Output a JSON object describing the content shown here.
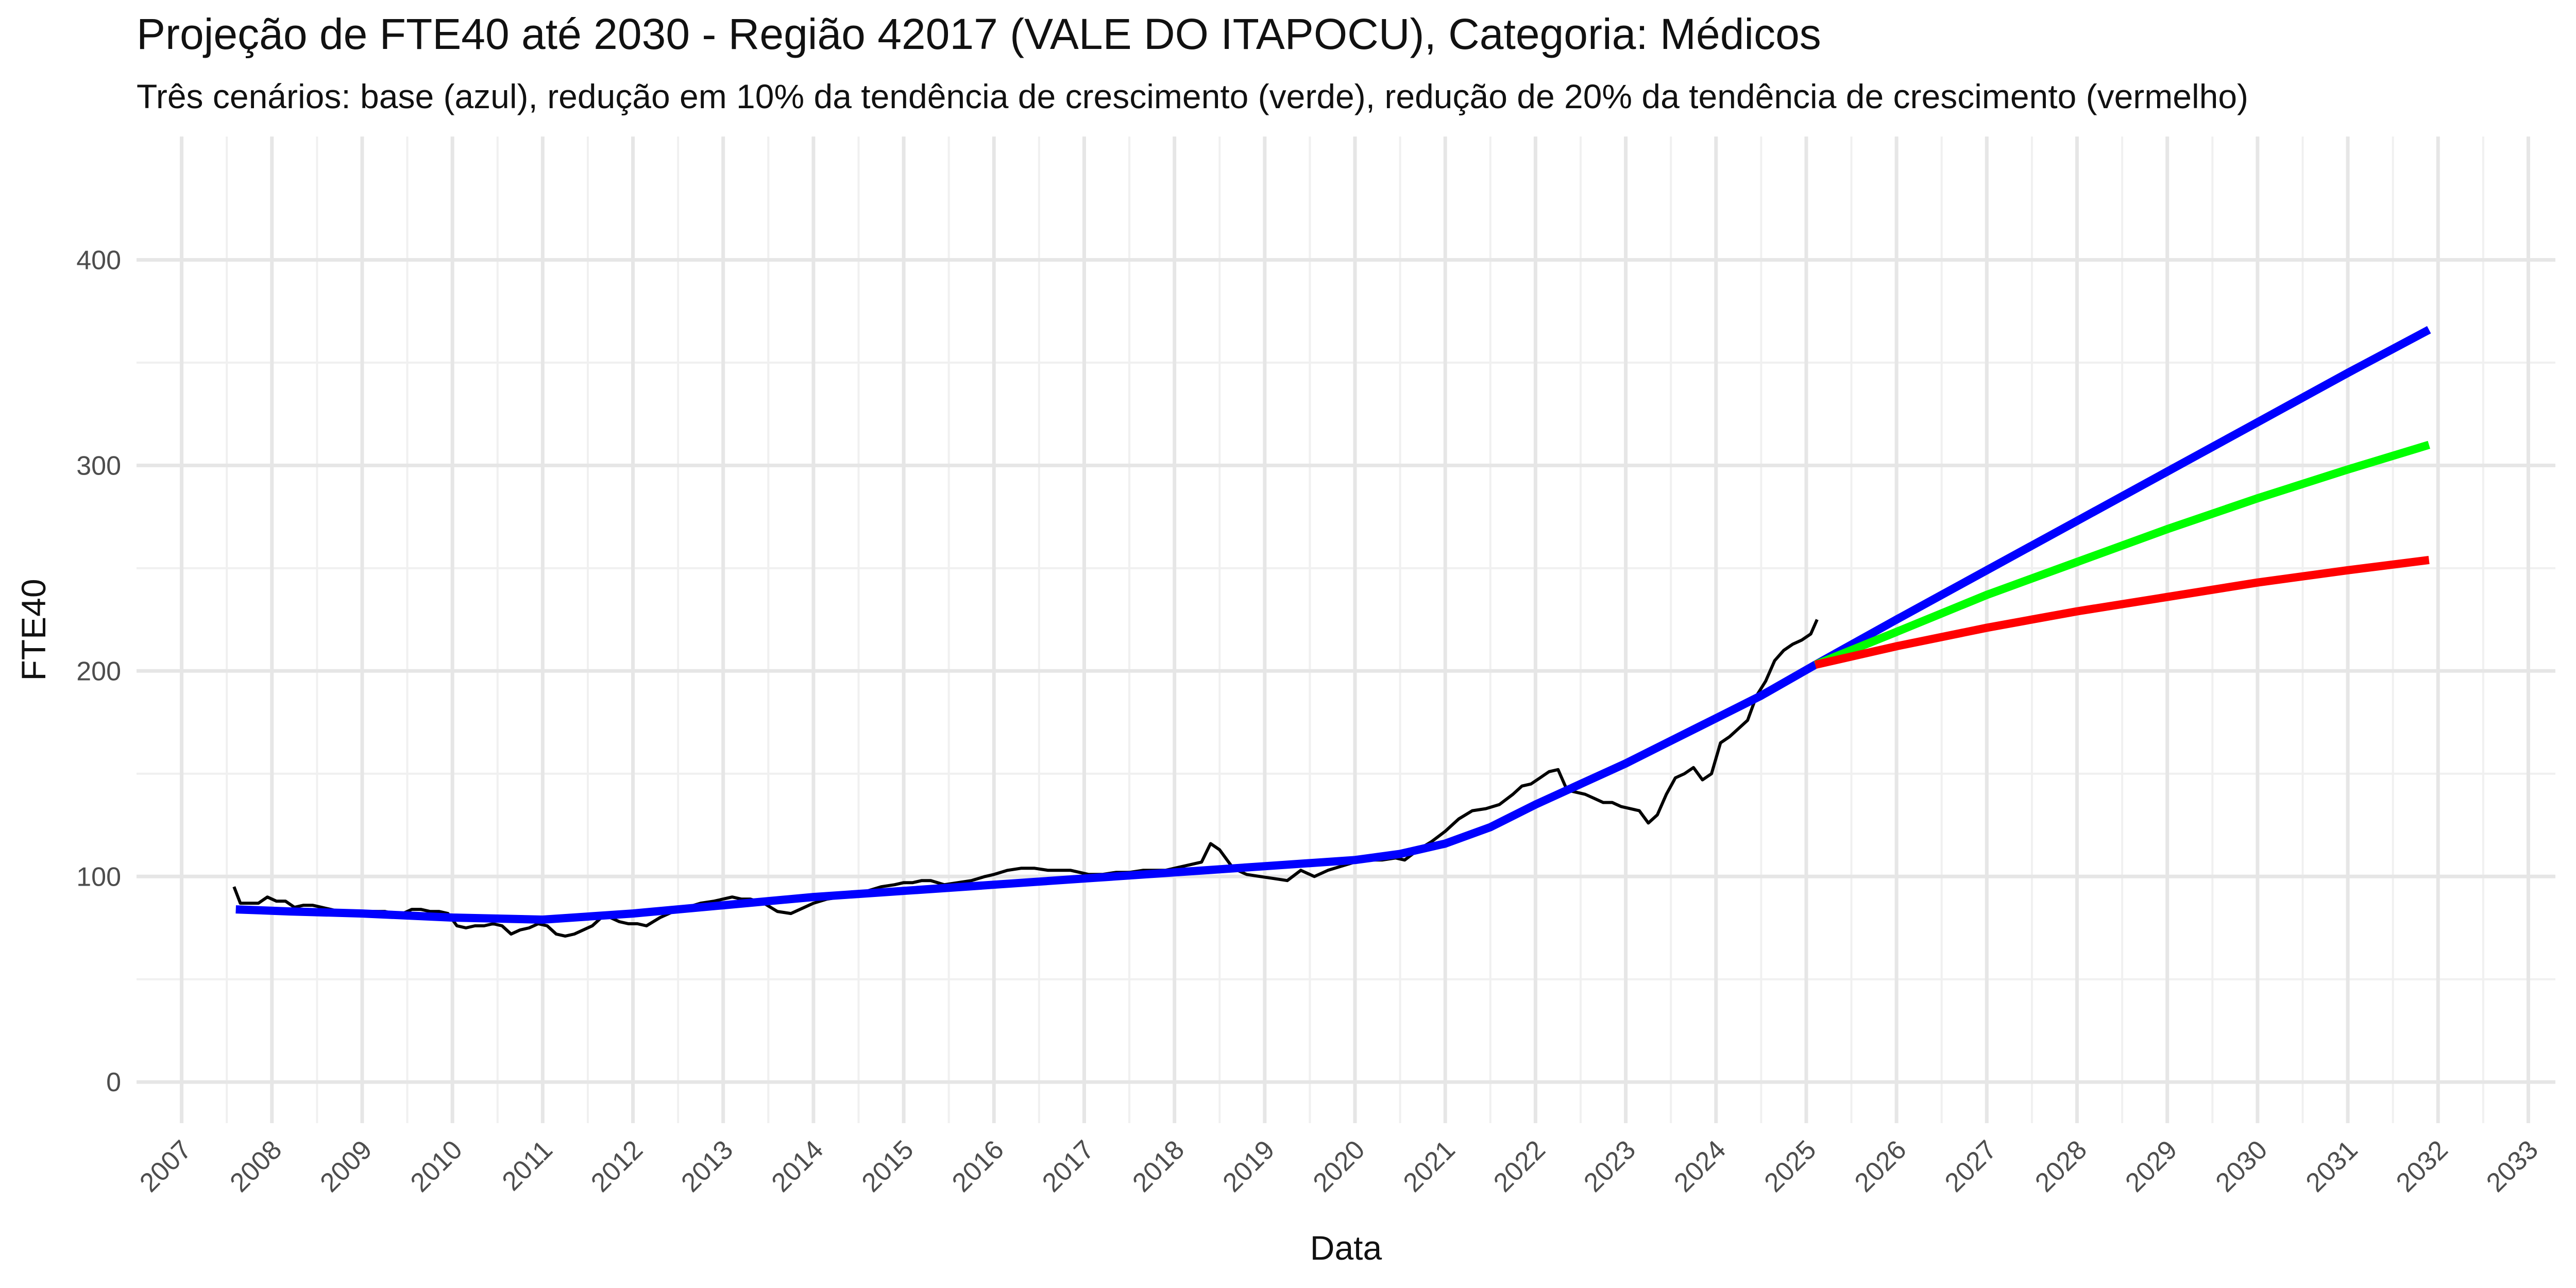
{
  "chart_data": {
    "type": "line",
    "title": "Projeção de FTE40 até 2030 - Região 42017 (VALE DO ITAPOCU), Categoria: Médicos",
    "subtitle": "Três cenários: base (azul), redução em 10% da tendência de crescimento (verde), redução de 20% da tendência de crescimento (vermelho)",
    "xlabel": "Data",
    "ylabel": "FTE40",
    "xlim": [
      2006.5,
      2033.3
    ],
    "ylim": [
      -20,
      460
    ],
    "x_ticks": [
      2007,
      2008,
      2009,
      2010,
      2011,
      2012,
      2013,
      2014,
      2015,
      2016,
      2017,
      2018,
      2019,
      2020,
      2021,
      2022,
      2023,
      2024,
      2025,
      2026,
      2027,
      2028,
      2029,
      2030,
      2031,
      2032,
      2033
    ],
    "x_tick_labels": [
      "2007",
      "2008",
      "2009",
      "2010",
      "2011",
      "2012",
      "2013",
      "2014",
      "2015",
      "2016",
      "2017",
      "2018",
      "2019",
      "2020",
      "2021",
      "2022",
      "2023",
      "2024",
      "2025",
      "2026",
      "2027",
      "2028",
      "2029",
      "2030",
      "2031",
      "2032",
      "2033"
    ],
    "y_ticks": [
      0,
      100,
      200,
      300,
      400
    ],
    "y_tick_labels": [
      "0",
      "100",
      "200",
      "300",
      "400"
    ],
    "grid": true,
    "legend": "none",
    "series": [
      {
        "color": "#000000",
        "x": [
          2007.58,
          2007.65,
          2007.75,
          2007.85,
          2007.95,
          2008.05,
          2008.15,
          2008.25,
          2008.35,
          2008.45,
          2008.55,
          2008.65,
          2008.75,
          2008.85,
          2008.95,
          2009.05,
          2009.15,
          2009.25,
          2009.35,
          2009.45,
          2009.55,
          2009.65,
          2009.75,
          2009.85,
          2009.95,
          2010.05,
          2010.15,
          2010.25,
          2010.35,
          2010.45,
          2010.55,
          2010.65,
          2010.75,
          2010.85,
          2010.95,
          2011.05,
          2011.15,
          2011.25,
          2011.35,
          2011.45,
          2011.55,
          2011.65,
          2011.75,
          2011.85,
          2011.95,
          2012.05,
          2012.15,
          2012.3,
          2012.45,
          2012.6,
          2012.75,
          2012.9,
          2013.0,
          2013.1,
          2013.2,
          2013.3,
          2013.45,
          2013.6,
          2013.75,
          2013.9,
          2014.0,
          2014.15,
          2014.3,
          2014.45,
          2014.6,
          2014.75,
          2014.9,
          2015.0,
          2015.1,
          2015.2,
          2015.3,
          2015.45,
          2015.6,
          2015.75,
          2015.9,
          2016.0,
          2016.15,
          2016.3,
          2016.45,
          2016.6,
          2016.75,
          2016.85,
          2016.95,
          2017.05,
          2017.2,
          2017.35,
          2017.5,
          2017.65,
          2017.8,
          2017.9,
          2018.0,
          2018.1,
          2018.2,
          2018.3,
          2018.4,
          2018.5,
          2018.65,
          2018.8,
          2018.95,
          2019.1,
          2019.25,
          2019.4,
          2019.55,
          2019.7,
          2019.85,
          2020.0,
          2020.15,
          2020.3,
          2020.45,
          2020.55,
          2020.7,
          2020.85,
          2021.0,
          2021.15,
          2021.3,
          2021.45,
          2021.6,
          2021.75,
          2021.85,
          2021.95,
          2022.05,
          2022.15,
          2022.25,
          2022.35,
          2022.45,
          2022.55,
          2022.65,
          2022.75,
          2022.85,
          2022.95,
          2023.05,
          2023.15,
          2023.25,
          2023.35,
          2023.45,
          2023.55,
          2023.65,
          2023.75,
          2023.85,
          2023.95,
          2024.05,
          2024.15,
          2024.25,
          2024.35,
          2024.45,
          2024.55,
          2024.65,
          2024.75,
          2024.85,
          2024.95,
          2025.05,
          2025.12
        ],
        "y": [
          95,
          87,
          87,
          87,
          90,
          88,
          88,
          85,
          86,
          86,
          85,
          84,
          83,
          82,
          83,
          83,
          83,
          83,
          82,
          82,
          84,
          84,
          83,
          83,
          82,
          76,
          75,
          76,
          76,
          77,
          76,
          72,
          74,
          75,
          77,
          76,
          72,
          71,
          72,
          74,
          76,
          80,
          80,
          78,
          77,
          77,
          76,
          80,
          83,
          85,
          87,
          88,
          89,
          90,
          89,
          89,
          87,
          83,
          82,
          85,
          87,
          89,
          90,
          91,
          93,
          95,
          96,
          97,
          97,
          98,
          98,
          96,
          97,
          98,
          100,
          101,
          103,
          104,
          104,
          103,
          103,
          103,
          102,
          101,
          101,
          102,
          102,
          103,
          103,
          103,
          104,
          105,
          106,
          107,
          116,
          113,
          104,
          101,
          100,
          99,
          98,
          103,
          100,
          103,
          105,
          107,
          108,
          108,
          109,
          108,
          113,
          117,
          122,
          128,
          132,
          133,
          135,
          140,
          144,
          145,
          148,
          151,
          152,
          142,
          141,
          140,
          138,
          136,
          136,
          134,
          133,
          132,
          126,
          130,
          140,
          148,
          150,
          153,
          147,
          150,
          165,
          168,
          172,
          176,
          188,
          195,
          205,
          210,
          213,
          215,
          218,
          225
        ],
        "width": 6
      },
      {
        "color": "#0000ff",
        "x": [
          2007.6,
          2008.2,
          2009.0,
          2010.0,
          2011.0,
          2012.0,
          2013.0,
          2014.0,
          2015.0,
          2016.0,
          2017.0,
          2018.0,
          2019.0,
          2020.0,
          2020.5,
          2021.0,
          2021.5,
          2022.0,
          2022.5,
          2023.0,
          2023.5,
          2024.0,
          2024.5,
          2025.1,
          2026.0,
          2027.0,
          2028.0,
          2029.0,
          2030.0,
          2031.0,
          2031.9
        ],
        "y": [
          84,
          83,
          82,
          80,
          79,
          82,
          86,
          90,
          93,
          96,
          99,
          102,
          105,
          108,
          111,
          116,
          124,
          135,
          145,
          155,
          166,
          177,
          188,
          203,
          225,
          249,
          273,
          297,
          321,
          345,
          366
        ],
        "width": 16
      },
      {
        "color": "#00ff00",
        "x": [
          2025.1,
          2026.0,
          2027.0,
          2028.0,
          2029.0,
          2030.0,
          2031.0,
          2031.9
        ],
        "y": [
          203,
          219,
          237,
          253,
          269,
          284,
          298,
          310
        ],
        "width": 16
      },
      {
        "color": "#ff0000",
        "x": [
          2025.1,
          2026.0,
          2027.0,
          2028.0,
          2029.0,
          2030.0,
          2031.0,
          2031.9
        ],
        "y": [
          203,
          212,
          221,
          229,
          236,
          243,
          249,
          254
        ],
        "width": 16
      }
    ]
  }
}
